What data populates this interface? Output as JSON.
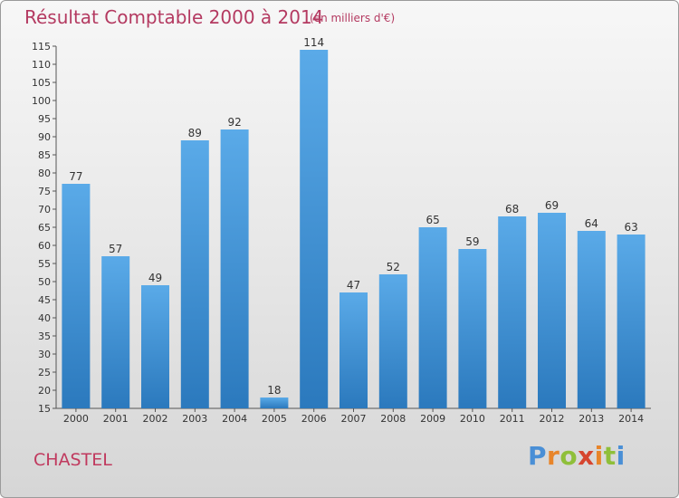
{
  "header": {
    "title": "Résultat Comptable 2000 à 2014",
    "subtitle": "(en milliers d'€)"
  },
  "footer": {
    "commune": "CHASTEL",
    "logo": "Proxiti"
  },
  "colors": {
    "title": "#b43a61",
    "bar_light": "#5aaae8",
    "bar_dark": "#2b79bd"
  },
  "chart_data": {
    "type": "bar",
    "title": "Résultat Comptable 2000 à 2014",
    "subtitle": "(en milliers d'€)",
    "xlabel": "",
    "ylabel": "",
    "categories": [
      "2000",
      "2001",
      "2002",
      "2003",
      "2004",
      "2005",
      "2006",
      "2007",
      "2008",
      "2009",
      "2010",
      "2011",
      "2012",
      "2013",
      "2014"
    ],
    "values": [
      77,
      57,
      49,
      89,
      92,
      18,
      114,
      47,
      52,
      65,
      59,
      68,
      69,
      64,
      63
    ],
    "ylim": [
      15,
      115
    ],
    "yticks": [
      15,
      20,
      25,
      30,
      35,
      40,
      45,
      50,
      55,
      60,
      65,
      70,
      75,
      80,
      85,
      90,
      95,
      100,
      105,
      110,
      115
    ],
    "grid": false,
    "legend": "none"
  }
}
